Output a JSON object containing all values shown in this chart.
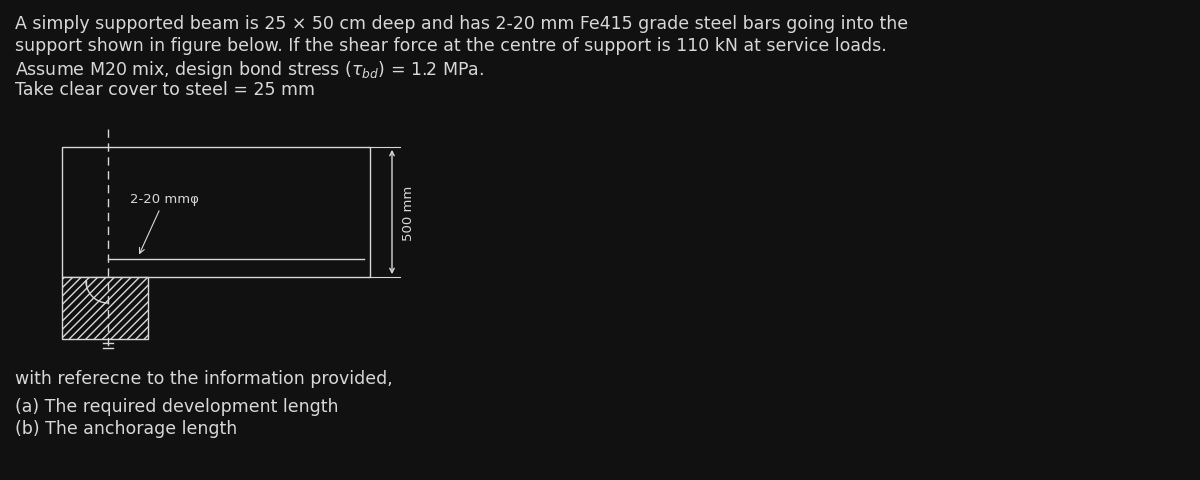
{
  "bg_color": "#111111",
  "fg_color": "#d8d8d8",
  "line1": "A simply supported beam is 25 × 50 cm deep and has 2-20 mm Fe415 grade steel bars going into the",
  "line2": "support shown in figure below. If the shear force at the centre of support is 110 kN at service loads.",
  "line3_pre": "Assume M20 mix, design bond stress (",
  "line3_tau": "$\\tau_{bd}$",
  "line3_post": ") = 1.2 MPa.",
  "line4": "Take clear cover to steel = 25 mm",
  "bottom_text1": "with referecne to the information provided,",
  "bottom_text2a": "(a) The required development length",
  "bottom_text2b": "(b) The anchorage length",
  "dim_label": "500 mm",
  "bar_label": "2-20 mmφ",
  "font_size_main": 12.5,
  "font_size_diagram": 9.5
}
